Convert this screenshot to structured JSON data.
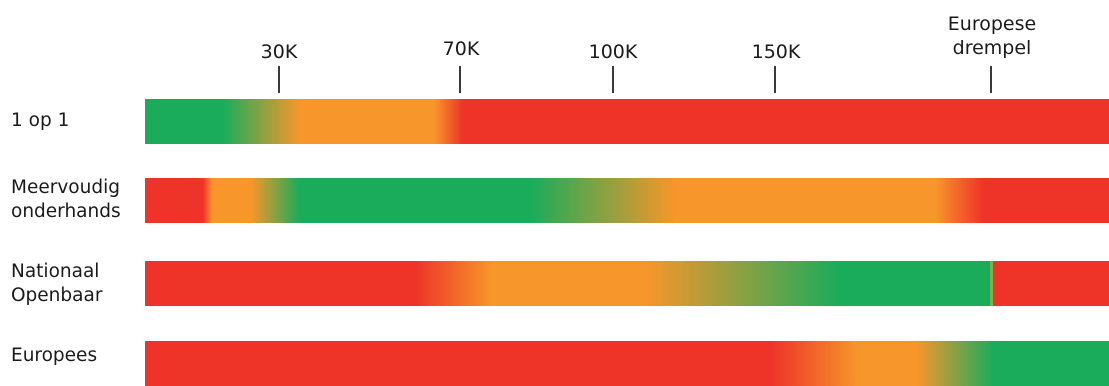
{
  "colors": {
    "green": "#1aac5b",
    "orange": "#f7962b",
    "red": "#ee3329",
    "tick": "#3a3a3a"
  },
  "axis": {
    "ticks": [
      {
        "label": "30K"
      },
      {
        "label": "70K"
      },
      {
        "label": "100K"
      },
      {
        "label": "150K"
      }
    ],
    "threshold": {
      "line1": "Europese",
      "line2": "drempel"
    }
  },
  "rows": [
    {
      "key": "1op1",
      "label_lines": [
        "1 op 1"
      ]
    },
    {
      "key": "meervoudig",
      "label_lines": [
        "Meervoudig",
        "onderhands"
      ]
    },
    {
      "key": "nationaal",
      "label_lines": [
        "Nationaal",
        "Openbaar"
      ]
    },
    {
      "key": "europees",
      "label_lines": [
        "Europees"
      ]
    }
  ]
}
